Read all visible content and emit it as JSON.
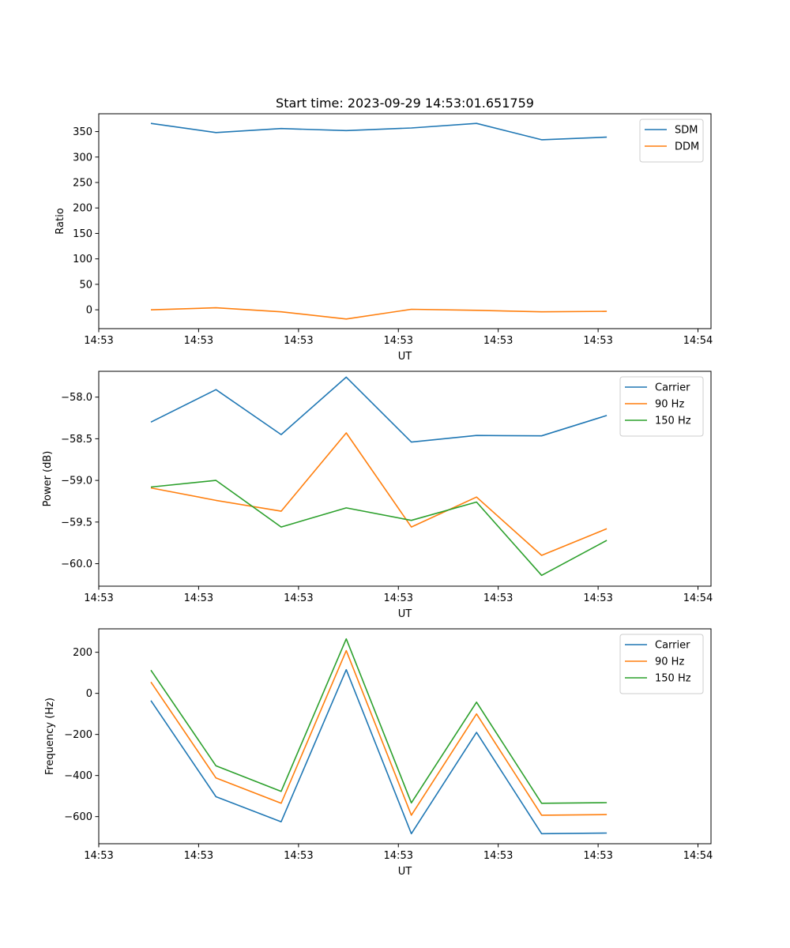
{
  "chart_data": [
    {
      "type": "line",
      "title": "Start time: 2023-09-29 14:53:01.651759",
      "xlabel": "UT",
      "ylabel": "Ratio",
      "x": [
        1,
        2,
        3,
        4,
        5,
        6,
        7,
        8
      ],
      "xlim": [
        0.2,
        9.6
      ],
      "xticks": [
        0.2,
        1.733,
        3.267,
        4.8,
        6.333,
        7.867,
        9.4
      ],
      "xtick_labels": [
        "14:53",
        "14:53",
        "14:53",
        "14:53",
        "14:53",
        "14:53",
        "14:54"
      ],
      "ylim": [
        -37,
        385
      ],
      "yticks": [
        0,
        50,
        100,
        150,
        200,
        250,
        300,
        350
      ],
      "ytick_labels": [
        "0",
        "50",
        "100",
        "150",
        "200",
        "250",
        "300",
        "350"
      ],
      "legend_position": "upper-right",
      "series": [
        {
          "name": "SDM",
          "color": "#1f77b4",
          "values": [
            366,
            348,
            356,
            352,
            357,
            366,
            334,
            339
          ]
        },
        {
          "name": "DDM",
          "color": "#ff7f0e",
          "values": [
            0,
            4,
            -4,
            -18,
            1,
            -1,
            -4,
            -3
          ]
        }
      ]
    },
    {
      "type": "line",
      "title": "",
      "xlabel": "UT",
      "ylabel": "Power (dB)",
      "x": [
        1,
        2,
        3,
        4,
        5,
        6,
        7,
        8
      ],
      "xlim": [
        0.2,
        9.6
      ],
      "xticks": [
        0.2,
        1.733,
        3.267,
        4.8,
        6.333,
        7.867,
        9.4
      ],
      "xtick_labels": [
        "14:53",
        "14:53",
        "14:53",
        "14:53",
        "14:53",
        "14:53",
        "14:54"
      ],
      "ylim": [
        -60.27,
        -57.69
      ],
      "yticks": [
        -60.0,
        -59.5,
        -59.0,
        -58.5,
        -58.0
      ],
      "ytick_labels": [
        "−60.0",
        "−59.5",
        "−59.0",
        "−58.5",
        "−58.0"
      ],
      "legend_position": "upper-right",
      "series": [
        {
          "name": "Carrier",
          "color": "#1f77b4",
          "values": [
            -58.3,
            -57.91,
            -58.45,
            -57.76,
            -58.54,
            -58.46,
            -58.465,
            -58.22
          ]
        },
        {
          "name": "90 Hz",
          "color": "#ff7f0e",
          "values": [
            -59.09,
            -59.24,
            -59.37,
            -58.43,
            -59.56,
            -59.2,
            -59.9,
            -59.58
          ]
        },
        {
          "name": "150 Hz",
          "color": "#2ca02c",
          "values": [
            -59.08,
            -59.0,
            -59.56,
            -59.33,
            -59.48,
            -59.26,
            -60.14,
            -59.72
          ]
        }
      ]
    },
    {
      "type": "line",
      "title": "",
      "xlabel": "UT",
      "ylabel": "Frequency (Hz)",
      "x": [
        1,
        2,
        3,
        4,
        5,
        6,
        7,
        8
      ],
      "xlim": [
        0.2,
        9.6
      ],
      "xticks": [
        0.2,
        1.733,
        3.267,
        4.8,
        6.333,
        7.867,
        9.4
      ],
      "xtick_labels": [
        "14:53",
        "14:53",
        "14:53",
        "14:53",
        "14:53",
        "14:53",
        "14:54"
      ],
      "ylim": [
        -732,
        314
      ],
      "yticks": [
        -600,
        -400,
        -200,
        0,
        200
      ],
      "ytick_labels": [
        "−600",
        "−400",
        "−200",
        "0",
        "200"
      ],
      "legend_position": "upper-right",
      "series": [
        {
          "name": "Carrier",
          "color": "#1f77b4",
          "values": [
            -35,
            -503,
            -625,
            115,
            -683,
            -190,
            -683,
            -680
          ]
        },
        {
          "name": "90 Hz",
          "color": "#ff7f0e",
          "values": [
            55,
            -412,
            -535,
            208,
            -593,
            -100,
            -593,
            -590
          ]
        },
        {
          "name": "150 Hz",
          "color": "#2ca02c",
          "values": [
            113,
            -353,
            -477,
            265,
            -533,
            -43,
            -535,
            -532
          ]
        }
      ]
    }
  ]
}
